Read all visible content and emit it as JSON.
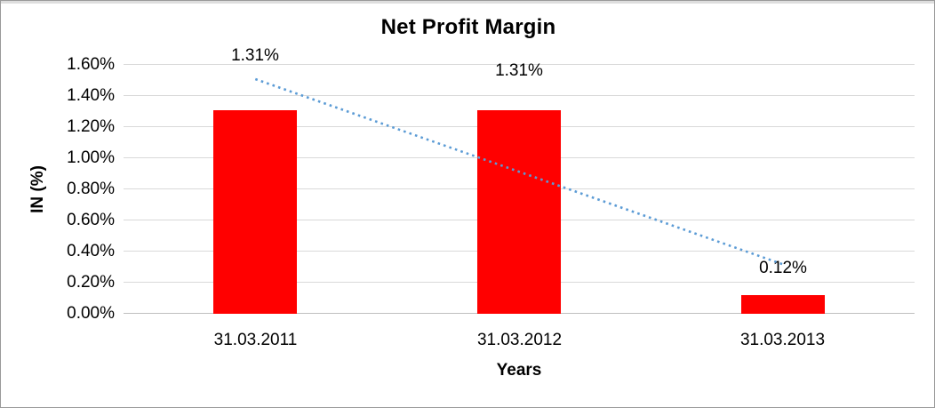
{
  "chart_data": {
    "type": "bar",
    "title": "Net Profit Margin",
    "xlabel": "Years",
    "ylabel": "IN (%)",
    "categories": [
      "31.03.2011",
      "31.03.2012",
      "31.03.2013"
    ],
    "values": [
      1.31,
      1.31,
      0.12
    ],
    "data_labels": [
      "1.31%",
      "1.31%",
      "0.12%"
    ],
    "y_ticks": [
      "0.00%",
      "0.20%",
      "0.40%",
      "0.60%",
      "0.80%",
      "1.00%",
      "1.20%",
      "1.40%",
      "1.60%"
    ],
    "ylim": [
      0,
      1.6
    ],
    "y_step": 0.2,
    "bar_color": "#FF0000",
    "gridlines": true,
    "gridline_color": "#D9D9D9",
    "axis_line_color": "#BFBFBF",
    "legend": "none",
    "trendline": {
      "type": "linear",
      "dash_style": "dotted",
      "color": "#5B9BD5",
      "endpoints_percent": [
        1.51,
        0.32
      ]
    }
  }
}
